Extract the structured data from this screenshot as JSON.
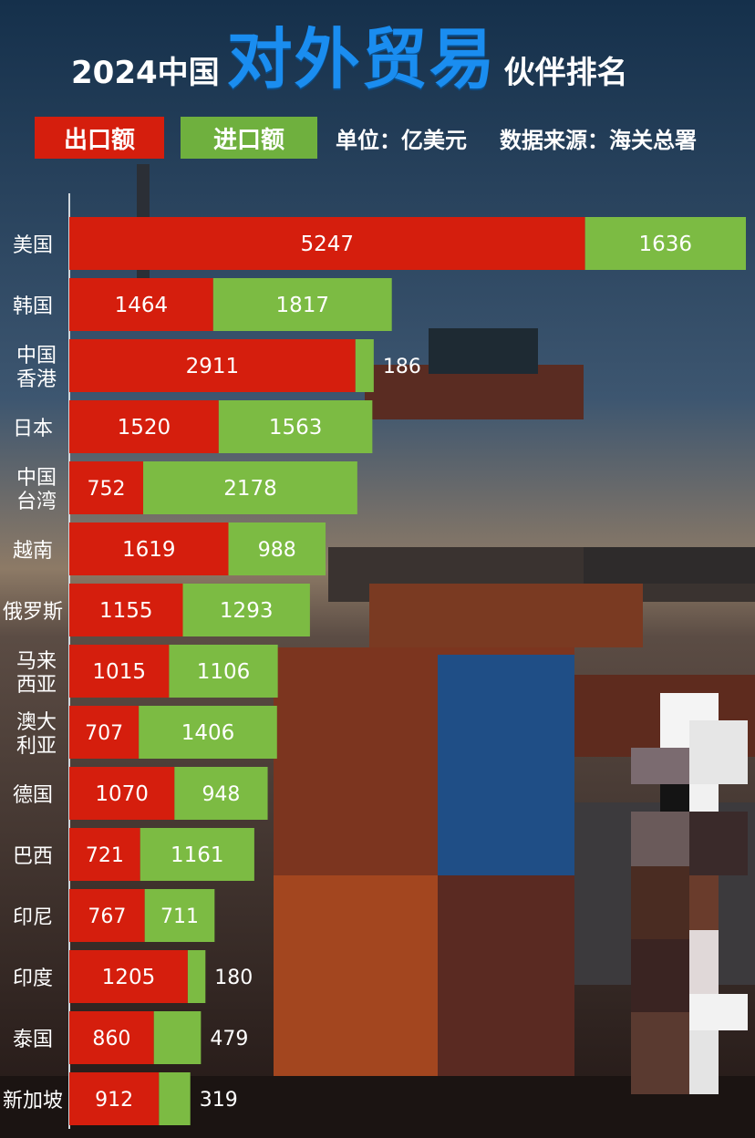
{
  "header": {
    "title_prefix": "2024中国",
    "title_highlight": "对外贸易",
    "title_suffix": "伙伴排名"
  },
  "legend": {
    "export_label": "出口额",
    "import_label": "进口额",
    "unit_text": "单位：亿美元",
    "source_text": "数据来源：海关总署"
  },
  "colors": {
    "export": "#d51e0d",
    "import": "#7cbb43",
    "title_accent": "#1a8df0"
  },
  "chart_data": {
    "type": "bar",
    "orientation": "horizontal",
    "stacked": true,
    "title": "2024中国对外贸易伙伴排名",
    "unit": "亿美元",
    "categories": [
      [
        "美国"
      ],
      [
        "韩国"
      ],
      [
        "中国",
        "香港"
      ],
      [
        "日本"
      ],
      [
        "中国",
        "台湾"
      ],
      [
        "越南"
      ],
      [
        "俄罗斯"
      ],
      [
        "马来",
        "西亚"
      ],
      [
        "澳大",
        "利亚"
      ],
      [
        "德国"
      ],
      [
        "巴西"
      ],
      [
        "印尼"
      ],
      [
        "印度"
      ],
      [
        "泰国"
      ],
      [
        "新加坡"
      ]
    ],
    "series": [
      {
        "name": "出口额",
        "values": [
          5247,
          1464,
          2911,
          1520,
          752,
          1619,
          1155,
          1015,
          707,
          1070,
          721,
          767,
          1205,
          860,
          912
        ]
      },
      {
        "name": "进口额",
        "values": [
          1636,
          1817,
          186,
          1563,
          2178,
          988,
          1293,
          1106,
          1406,
          948,
          1161,
          711,
          180,
          479,
          319
        ]
      }
    ],
    "legend_position": "top"
  }
}
